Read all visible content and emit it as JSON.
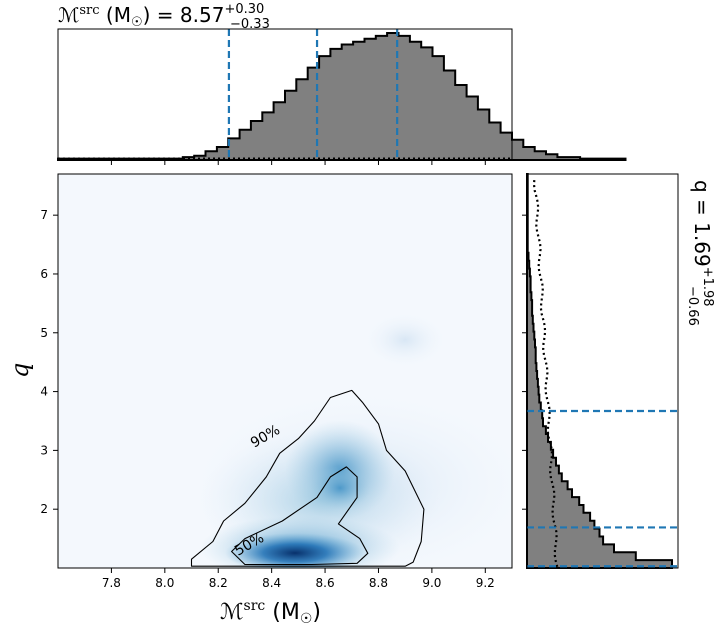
{
  "chart_data": {
    "type": "corner",
    "top_title": {
      "prefix": "ℳ",
      "sup": "src",
      "unit": " (M",
      "sun": "☉",
      "eq": ") = 8.57",
      "plus": "+0.30",
      "minus": "−0.33"
    },
    "right_title": {
      "prefix": "q = 1.69",
      "plus": "+1.98",
      "minus": "−0.66"
    },
    "xlabel": {
      "prefix": "ℳ",
      "sup": "src",
      "unit": " (M",
      "sun": "☉",
      "close": ")"
    },
    "ylabel": "q",
    "xlim": [
      7.6,
      9.3
    ],
    "ylim": [
      1.0,
      7.7
    ],
    "xticks": [
      "7.8",
      "8.0",
      "8.2",
      "8.4",
      "8.6",
      "8.8",
      "9.0",
      "9.2"
    ],
    "yticks": [
      "2",
      "3",
      "4",
      "5",
      "6",
      "7"
    ],
    "xtick_values": [
      7.8,
      8.0,
      8.2,
      8.4,
      8.6,
      8.8,
      9.0,
      9.2
    ],
    "ytick_values": [
      2,
      3,
      4,
      5,
      6,
      7
    ],
    "chirp_quantiles": [
      8.24,
      8.57,
      8.87
    ],
    "q_quantiles": [
      1.03,
      1.69,
      3.67
    ],
    "contour_labels": [
      "90%",
      "50%"
    ],
    "chirp_hist": {
      "bin_start": 7.6,
      "bin_width": 0.0425,
      "counts": [
        1,
        1,
        1,
        1,
        1,
        1,
        1,
        1,
        1,
        1,
        1,
        2,
        3,
        6,
        9,
        15,
        21,
        27,
        33,
        40,
        48,
        56,
        64,
        72,
        77,
        80,
        82,
        84,
        86,
        88,
        86,
        82,
        78,
        72,
        62,
        52,
        44,
        35,
        26,
        19,
        14,
        9,
        6,
        4,
        2,
        2,
        1,
        1,
        1,
        1
      ]
    },
    "q_hist": {
      "bin_start": 1.0,
      "bin_width": 0.134,
      "counts": [
        200,
        150,
        120,
        105,
        100,
        93,
        87,
        78,
        72,
        62,
        56,
        48,
        44,
        40,
        36,
        33,
        29,
        26,
        22,
        21,
        19,
        17,
        16,
        15,
        14,
        13,
        12,
        12,
        11,
        10,
        9,
        8,
        7,
        7,
        6,
        5,
        5,
        4,
        3,
        2,
        1,
        1,
        1,
        1,
        1,
        1,
        1,
        1,
        1,
        1
      ]
    },
    "contours": {
      "90": [
        [
          8.1,
          1.03
        ],
        [
          8.1,
          1.15
        ],
        [
          8.18,
          1.45
        ],
        [
          8.22,
          1.8
        ],
        [
          8.3,
          2.1
        ],
        [
          8.38,
          2.55
        ],
        [
          8.43,
          2.95
        ],
        [
          8.5,
          3.2
        ],
        [
          8.56,
          3.5
        ],
        [
          8.62,
          3.9
        ],
        [
          8.7,
          4.02
        ],
        [
          8.74,
          3.82
        ],
        [
          8.8,
          3.45
        ],
        [
          8.83,
          3.0
        ],
        [
          8.9,
          2.65
        ],
        [
          8.97,
          2.0
        ],
        [
          8.96,
          1.45
        ],
        [
          8.93,
          1.1
        ],
        [
          8.9,
          1.03
        ]
      ],
      "50": [
        [
          8.3,
          1.06
        ],
        [
          8.25,
          1.28
        ],
        [
          8.3,
          1.5
        ],
        [
          8.44,
          1.8
        ],
        [
          8.57,
          2.2
        ],
        [
          8.62,
          2.55
        ],
        [
          8.68,
          2.72
        ],
        [
          8.72,
          2.55
        ],
        [
          8.72,
          2.2
        ],
        [
          8.65,
          1.75
        ],
        [
          8.73,
          1.5
        ],
        [
          8.76,
          1.25
        ],
        [
          8.72,
          1.08
        ],
        [
          8.55,
          1.06
        ]
      ]
    }
  }
}
